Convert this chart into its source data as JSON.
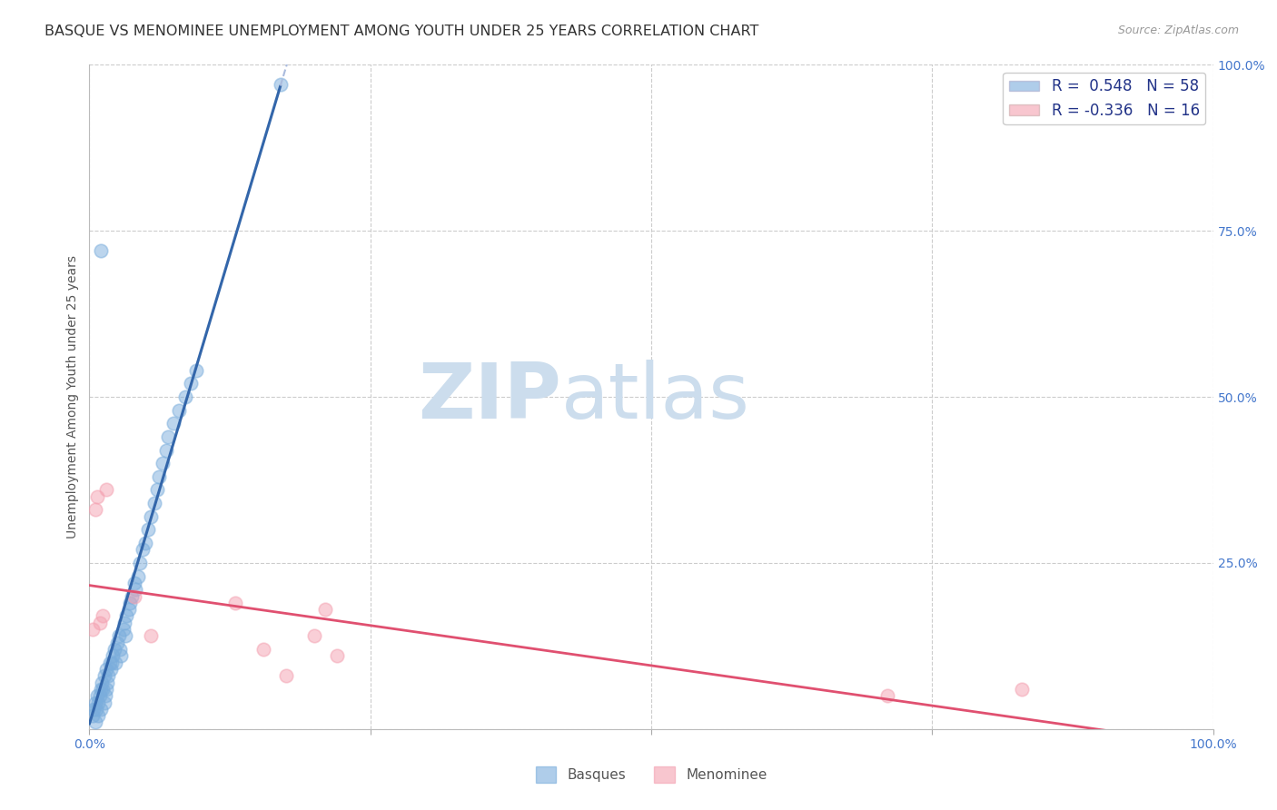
{
  "title": "BASQUE VS MENOMINEE UNEMPLOYMENT AMONG YOUTH UNDER 25 YEARS CORRELATION CHART",
  "source": "Source: ZipAtlas.com",
  "ylabel": "Unemployment Among Youth under 25 years",
  "xlim": [
    0,
    1
  ],
  "ylim": [
    0,
    1
  ],
  "basque_color": "#7aaddc",
  "menominee_color": "#f4a0b0",
  "basque_R": 0.548,
  "basque_N": 58,
  "menominee_R": -0.336,
  "menominee_N": 16,
  "watermark_zip": "ZIP",
  "watermark_atlas": "atlas",
  "watermark_color": "#ccdded",
  "grid_color": "#cccccc",
  "title_fontsize": 11.5,
  "axis_label_fontsize": 10,
  "tick_fontsize": 10,
  "legend_fontsize": 12,
  "source_fontsize": 9,
  "basque_x": [
    0.003,
    0.004,
    0.005,
    0.005,
    0.006,
    0.007,
    0.008,
    0.008,
    0.009,
    0.01,
    0.01,
    0.011,
    0.012,
    0.013,
    0.013,
    0.014,
    0.015,
    0.015,
    0.016,
    0.017,
    0.018,
    0.019,
    0.02,
    0.021,
    0.022,
    0.023,
    0.025,
    0.026,
    0.027,
    0.028,
    0.03,
    0.031,
    0.032,
    0.033,
    0.035,
    0.036,
    0.038,
    0.04,
    0.041,
    0.043,
    0.045,
    0.047,
    0.05,
    0.052,
    0.055,
    0.058,
    0.06,
    0.062,
    0.065,
    0.068,
    0.07,
    0.075,
    0.08,
    0.085,
    0.09,
    0.095,
    0.01,
    0.17
  ],
  "basque_y": [
    0.02,
    0.03,
    0.04,
    0.01,
    0.03,
    0.05,
    0.04,
    0.02,
    0.05,
    0.06,
    0.03,
    0.07,
    0.06,
    0.08,
    0.04,
    0.05,
    0.09,
    0.06,
    0.07,
    0.08,
    0.1,
    0.09,
    0.1,
    0.11,
    0.12,
    0.1,
    0.13,
    0.14,
    0.12,
    0.11,
    0.15,
    0.16,
    0.14,
    0.17,
    0.18,
    0.19,
    0.2,
    0.22,
    0.21,
    0.23,
    0.25,
    0.27,
    0.28,
    0.3,
    0.32,
    0.34,
    0.36,
    0.38,
    0.4,
    0.42,
    0.44,
    0.46,
    0.48,
    0.5,
    0.52,
    0.54,
    0.72,
    0.97
  ],
  "menominee_x": [
    0.003,
    0.005,
    0.007,
    0.009,
    0.012,
    0.015,
    0.04,
    0.055,
    0.13,
    0.155,
    0.175,
    0.2,
    0.21,
    0.22,
    0.71,
    0.83
  ],
  "menominee_y": [
    0.15,
    0.33,
    0.35,
    0.16,
    0.17,
    0.36,
    0.2,
    0.14,
    0.19,
    0.12,
    0.08,
    0.14,
    0.18,
    0.11,
    0.05,
    0.06
  ]
}
